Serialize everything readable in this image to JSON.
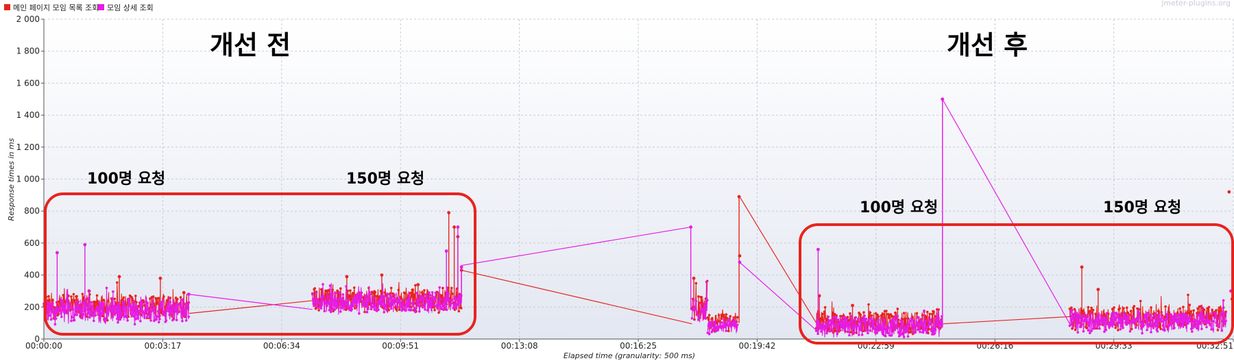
{
  "chart_data": {
    "type": "line",
    "watermark": "jmeter-plugins.org",
    "xlabel": "Elapsed time (granularity: 500 ms)",
    "ylabel": "Response times in ms",
    "ylim": [
      0,
      2000
    ],
    "xlim_seconds": [
      0,
      1971
    ],
    "y_ticks": [
      {
        "value": 0,
        "label": "0"
      },
      {
        "value": 200,
        "label": "200"
      },
      {
        "value": 400,
        "label": "400"
      },
      {
        "value": 600,
        "label": "600"
      },
      {
        "value": 800,
        "label": "800"
      },
      {
        "value": 1000,
        "label": "1 000"
      },
      {
        "value": 1200,
        "label": "1 200"
      },
      {
        "value": 1400,
        "label": "1 400"
      },
      {
        "value": 1600,
        "label": "1 600"
      },
      {
        "value": 1800,
        "label": "1 800"
      },
      {
        "value": 2000,
        "label": "2 000"
      }
    ],
    "x_ticks": [
      {
        "value": 0,
        "label": "00:00:00"
      },
      {
        "value": 197,
        "label": "00:03:17"
      },
      {
        "value": 394,
        "label": "00:06:34"
      },
      {
        "value": 591,
        "label": "00:09:51"
      },
      {
        "value": 788,
        "label": "00:13:08"
      },
      {
        "value": 985,
        "label": "00:16:25"
      },
      {
        "value": 1182,
        "label": "00:19:42"
      },
      {
        "value": 1379,
        "label": "00:22:59"
      },
      {
        "value": 1576,
        "label": "00:26:16"
      },
      {
        "value": 1773,
        "label": "00:29:33"
      },
      {
        "value": 1971,
        "label": "00:32:51"
      }
    ],
    "grid": true,
    "legend_position": "top-left",
    "series": [
      {
        "name": "메인 페이지 모임 목록 조회",
        "color": "#e8231e",
        "segments": [
          {
            "x_start": 0,
            "x_end": 240,
            "base": 200,
            "noise": 90,
            "density": 1.5
          },
          {
            "x_start": 445,
            "x_end": 692,
            "base": 245,
            "noise": 85,
            "density": 1.5
          },
          {
            "x_start": 1074,
            "x_end": 1100,
            "base": 200,
            "noise": 90,
            "density": 1.5
          },
          {
            "x_start": 1100,
            "x_end": 1150,
            "base": 100,
            "noise": 70,
            "density": 1.5
          },
          {
            "x_start": 1280,
            "x_end": 1489,
            "base": 105,
            "noise": 85,
            "density": 1.5
          },
          {
            "x_start": 1700,
            "x_end": 1960,
            "base": 135,
            "noise": 85,
            "density": 1.5
          }
        ],
        "spikes": [
          [
            8,
            220
          ],
          [
            40,
            270
          ],
          [
            75,
            300
          ],
          [
            125,
            390
          ],
          [
            193,
            380
          ],
          [
            232,
            290
          ],
          [
            470,
            300
          ],
          [
            502,
            390
          ],
          [
            560,
            400
          ],
          [
            620,
            340
          ],
          [
            671,
            790
          ],
          [
            680,
            700
          ],
          [
            686,
            640
          ],
          [
            692,
            430
          ],
          [
            1077,
            380
          ],
          [
            1152,
            890
          ],
          [
            1153,
            520
          ],
          [
            1285,
            270
          ],
          [
            1340,
            210
          ],
          [
            1720,
            450
          ],
          [
            1747,
            310
          ],
          [
            1964,
            920
          ],
          [
            1969,
            250
          ]
        ],
        "connectors": [
          [
            [
              240,
              160
            ],
            [
              445,
              240
            ]
          ],
          [
            [
              692,
              430
            ],
            [
              1074,
              95
            ]
          ],
          [
            [
              1153,
              890
            ],
            [
              1280,
              100
            ]
          ],
          [
            [
              1489,
              95
            ],
            [
              1700,
              140
            ]
          ]
        ]
      },
      {
        "name": "모임 상세 조회",
        "color": "#e61be6",
        "segments": [
          {
            "x_start": 0,
            "x_end": 240,
            "base": 175,
            "noise": 85,
            "density": 1.5
          },
          {
            "x_start": 445,
            "x_end": 692,
            "base": 225,
            "noise": 75,
            "density": 1.5
          },
          {
            "x_start": 1074,
            "x_end": 1100,
            "base": 180,
            "noise": 85,
            "density": 1.5
          },
          {
            "x_start": 1100,
            "x_end": 1150,
            "base": 80,
            "noise": 55,
            "density": 1.5
          },
          {
            "x_start": 1280,
            "x_end": 1489,
            "base": 80,
            "noise": 75,
            "density": 1.5
          },
          {
            "x_start": 1700,
            "x_end": 1960,
            "base": 110,
            "noise": 75,
            "density": 1.5
          }
        ],
        "spikes": [
          [
            22,
            540
          ],
          [
            68,
            590
          ],
          [
            240,
            280
          ],
          [
            667,
            550
          ],
          [
            686,
            700
          ],
          [
            692,
            450
          ],
          [
            1072,
            700
          ],
          [
            1153,
            480
          ],
          [
            1283,
            560
          ],
          [
            1489,
            1500
          ],
          [
            1967,
            300
          ]
        ],
        "connectors": [
          [
            [
              240,
              280
            ],
            [
              445,
              185
            ]
          ],
          [
            [
              692,
              460
            ],
            [
              1072,
              700
            ]
          ],
          [
            [
              1153,
              480
            ],
            [
              1280,
              55
            ]
          ],
          [
            [
              1489,
              70
            ],
            [
              1489,
              1500
            ]
          ],
          [
            [
              1489,
              1500
            ],
            [
              1700,
              95
            ]
          ]
        ]
      }
    ]
  },
  "annotations": {
    "before_title": "개선 전",
    "after_title": "개선 후",
    "before_100": "100명 요청",
    "before_150": "150명 요청",
    "after_100": "100명 요청",
    "after_150": "150명 요청",
    "box_color": "#e8231e"
  }
}
